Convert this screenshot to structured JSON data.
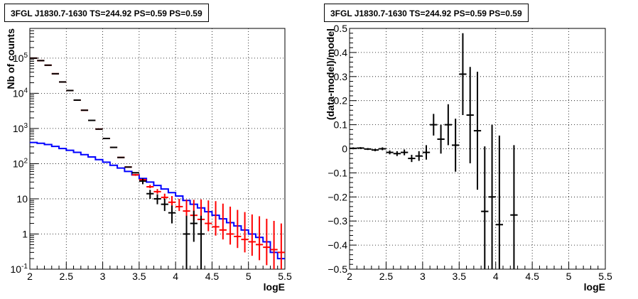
{
  "chart_data": [
    {
      "type": "line",
      "title": "3FGL J1830.7-1630 TS=244.92 PS=0.59 PS=0.59",
      "xlabel": "logE",
      "ylabel": "Nb of counts",
      "xlim": [
        2,
        5.5
      ],
      "ylim": [
        0.1,
        700000
      ],
      "yscale": "log",
      "grid": true,
      "x_ticks": [
        "2",
        "2.5",
        "3",
        "3.5",
        "4",
        "4.5",
        "5",
        "5.5"
      ],
      "y_ticks": [
        "10⁻¹",
        "1",
        "10",
        "10²",
        "10³",
        "10⁴",
        "10⁵"
      ],
      "bin_edges": [
        2.0,
        2.1,
        2.2,
        2.3,
        2.4,
        2.5,
        2.6,
        2.7,
        2.8,
        2.9,
        3.0,
        3.1,
        3.2,
        3.3,
        3.4,
        3.5,
        3.6,
        3.7,
        3.8,
        3.9,
        4.0,
        4.1,
        4.2,
        4.3,
        4.4,
        4.5,
        4.6,
        4.7,
        4.8,
        4.9,
        5.0,
        5.1,
        5.2,
        5.3,
        5.4,
        5.5
      ],
      "series": [
        {
          "role": "data",
          "color": "#000000",
          "x": [
            2.05,
            2.15,
            2.25,
            2.35,
            2.45,
            2.55,
            2.65,
            2.75,
            2.85,
            2.95,
            3.05,
            3.15,
            3.25,
            3.35,
            3.45,
            3.55,
            3.65,
            3.75,
            3.85,
            3.95,
            4.05,
            4.15,
            4.25,
            4.35
          ],
          "y": [
            100000,
            85000,
            63000,
            36000,
            21000,
            12000,
            6400,
            3300,
            1700,
            960,
            520,
            290,
            150,
            80,
            55,
            32,
            14,
            10,
            7,
            4,
            0,
            1,
            2,
            1
          ],
          "yerr_low": [
            0,
            0,
            0,
            0,
            0,
            0,
            0,
            0,
            0,
            0,
            0,
            0,
            0,
            0,
            0,
            6,
            4,
            3,
            2.5,
            2,
            0,
            1,
            1.4,
            1
          ],
          "yerr_high": [
            0,
            0,
            0,
            0,
            0,
            0,
            0,
            0,
            0,
            0,
            0,
            0,
            0,
            0,
            0,
            6,
            4,
            3.5,
            3,
            2.5,
            0,
            2.3,
            2.6,
            2.3
          ]
        },
        {
          "role": "model",
          "color": "#ff0000",
          "x": [
            2.05,
            2.15,
            2.25,
            2.35,
            2.45,
            2.55,
            2.65,
            2.75,
            2.85,
            2.95,
            3.05,
            3.15,
            3.25,
            3.35,
            3.45,
            3.55,
            3.65,
            3.75,
            3.85,
            3.95,
            4.05,
            4.15,
            4.25,
            4.35,
            4.45,
            4.55,
            4.65,
            4.75,
            4.85,
            4.95,
            5.05,
            5.15,
            5.25,
            5.35,
            5.45
          ],
          "y": [
            100000,
            85000,
            63000,
            36000,
            21000,
            12000,
            6400,
            3300,
            1700,
            960,
            520,
            290,
            150,
            80,
            48,
            35,
            22,
            16,
            11,
            8,
            6,
            4.5,
            3.4,
            2.6,
            2.0,
            1.6,
            1.3,
            1.0,
            0.85,
            0.7,
            0.6,
            0.5,
            0.42,
            0.36,
            0.3
          ],
          "yerr_low": [
            0,
            0,
            0,
            0,
            0,
            0,
            0,
            0,
            0,
            0,
            0,
            0,
            0,
            0,
            3,
            3,
            2,
            2,
            1.5,
            1.5,
            1.5,
            1.3,
            1.1,
            0.9,
            0.8,
            0.7,
            0.6,
            0.5,
            0.45,
            0.4,
            0.36,
            0.32,
            0.29,
            0.26,
            0.22
          ],
          "yerr_high": [
            0,
            0,
            0,
            0,
            0,
            0,
            0,
            0,
            0,
            0,
            0,
            0,
            0,
            0,
            3,
            3,
            3,
            3,
            3,
            4,
            4,
            5,
            6,
            7,
            7,
            7,
            6,
            5,
            4,
            3.5,
            3,
            2.7,
            2.3,
            2,
            1.7
          ]
        },
        {
          "role": "background",
          "color": "#0000ff",
          "step": true,
          "y": [
            400,
            380,
            350,
            310,
            270,
            240,
            210,
            180,
            155,
            130,
            110,
            90,
            75,
            60,
            48,
            38,
            30,
            24,
            19,
            15,
            12,
            9,
            7,
            5.5,
            4.3,
            3.4,
            2.7,
            2.1,
            1.7,
            1.3,
            1.0,
            0.8,
            0.6,
            0.3,
            0.2
          ]
        }
      ]
    },
    {
      "type": "scatter",
      "title": "3FGL J1830.7-1630 TS=244.92 PS=0.59 PS=0.59",
      "xlabel": "logE",
      "ylabel": "(data-model)/model",
      "xlim": [
        2,
        5.5
      ],
      "ylim": [
        -0.5,
        0.5
      ],
      "grid": true,
      "x_ticks": [
        "2",
        "2.5",
        "3",
        "3.5",
        "4",
        "4.5",
        "5",
        "5.5"
      ],
      "y_ticks": [
        "−0.5",
        "−0.4",
        "−0.3",
        "−0.2",
        "−0.1",
        "0",
        "0.1",
        "0.2",
        "0.3",
        "0.4",
        "0.5"
      ],
      "series": [
        {
          "color": "#000000",
          "x": [
            2.05,
            2.15,
            2.25,
            2.35,
            2.45,
            2.55,
            2.65,
            2.75,
            2.85,
            2.95,
            3.05,
            3.15,
            3.25,
            3.35,
            3.45,
            3.55,
            3.65,
            3.75,
            3.85,
            3.95,
            4.05,
            4.25
          ],
          "y": [
            0.002,
            0.003,
            -0.001,
            -0.005,
            0.0,
            -0.015,
            -0.02,
            -0.015,
            -0.04,
            -0.03,
            -0.015,
            0.1,
            0.04,
            0.1,
            0.015,
            0.31,
            0.14,
            0.075,
            -0.26,
            -0.2,
            -0.315,
            -0.275
          ],
          "yerr": [
            0.004,
            0.004,
            0.004,
            0.005,
            0.006,
            0.008,
            0.01,
            0.012,
            0.015,
            0.02,
            0.03,
            0.045,
            0.06,
            0.085,
            0.11,
            0.17,
            0.2,
            0.245,
            0.27,
            0.3,
            0.37,
            0.29
          ]
        }
      ]
    }
  ]
}
